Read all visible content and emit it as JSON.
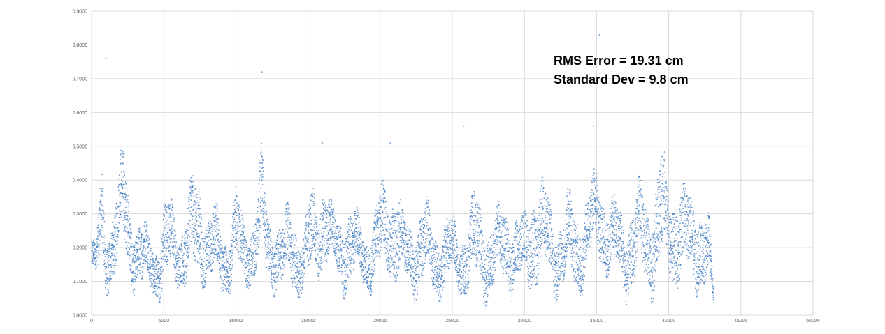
{
  "chart_data": {
    "type": "scatter",
    "title": "",
    "xlabel": "",
    "ylabel": "",
    "xlim": [
      0,
      50000
    ],
    "ylim": [
      0,
      0.9
    ],
    "x_ticks": [
      0,
      5000,
      10000,
      15000,
      20000,
      25000,
      30000,
      35000,
      40000,
      45000,
      50000
    ],
    "y_ticks": [
      0,
      0.1,
      0.2,
      0.3,
      0.4,
      0.5,
      0.6,
      0.7,
      0.8,
      0.9
    ],
    "x_tick_labels": [
      "0",
      "5000",
      "10000",
      "15000",
      "20000",
      "25000",
      "30000",
      "35000",
      "40000",
      "45000",
      "50000"
    ],
    "y_tick_labels": [
      "0.0000",
      "0.1000",
      "0.2000",
      "0.3000",
      "0.4000",
      "0.5000",
      "0.6000",
      "0.7000",
      "0.8000",
      "0.9000"
    ],
    "grid": true,
    "marker_color": "#3b78c0",
    "annotations": [
      "RMS Error = 19.31 cm",
      "Standard Dev = 9.8 cm"
    ],
    "envelope": {
      "x": [
        0,
        300,
        700,
        1000,
        1400,
        1800,
        2200,
        2700,
        3000,
        3500,
        4000,
        4500,
        4800,
        5000,
        5500,
        6000,
        6500,
        7000,
        7500,
        8000,
        8500,
        9000,
        9500,
        10000,
        10500,
        11000,
        11500,
        11800,
        12200,
        12700,
        13200,
        13700,
        14200,
        14700,
        15200,
        15700,
        16100,
        16600,
        17100,
        17600,
        18100,
        18600,
        19100,
        19600,
        20100,
        20600,
        21100,
        21600,
        22100,
        22600,
        23100,
        23600,
        24100,
        24600,
        25100,
        25600,
        26100,
        26600,
        27100,
        27600,
        28100,
        28600,
        29100,
        29600,
        30100,
        30600,
        31100,
        31600,
        32100,
        32600,
        33100,
        33600,
        34100,
        34600,
        35100,
        35600,
        36100,
        36600,
        37100,
        37600,
        38100,
        38600,
        39100,
        39500,
        40000,
        40500,
        41000,
        41500,
        42000,
        42500,
        42800,
        43100
      ],
      "low": [
        0.1,
        0.08,
        0.06,
        0.05,
        0.06,
        0.1,
        0.12,
        0.08,
        0.05,
        0.03,
        0.05,
        0.03,
        0.02,
        0.02,
        0.05,
        0.08,
        0.04,
        0.03,
        0.06,
        0.08,
        0.04,
        0.03,
        0.05,
        0.08,
        0.05,
        0.07,
        0.09,
        0.1,
        0.06,
        0.05,
        0.04,
        0.03,
        0.04,
        0.03,
        0.04,
        0.08,
        0.12,
        0.1,
        0.06,
        0.04,
        0.05,
        0.07,
        0.05,
        0.06,
        0.08,
        0.1,
        0.06,
        0.05,
        0.04,
        0.03,
        0.04,
        0.03,
        0.03,
        0.05,
        0.06,
        0.04,
        0.03,
        0.03,
        0.02,
        0.03,
        0.04,
        0.05,
        0.04,
        0.05,
        0.06,
        0.05,
        0.07,
        0.04,
        0.03,
        0.05,
        0.04,
        0.03,
        0.06,
        0.1,
        0.14,
        0.1,
        0.06,
        0.05,
        0.03,
        0.03,
        0.05,
        0.04,
        0.03,
        0.05,
        0.06,
        0.05,
        0.04,
        0.06,
        0.05,
        0.04,
        0.03,
        0.01
      ],
      "high": [
        0.25,
        0.22,
        0.48,
        0.3,
        0.35,
        0.42,
        0.54,
        0.38,
        0.32,
        0.3,
        0.28,
        0.25,
        0.27,
        0.35,
        0.38,
        0.3,
        0.33,
        0.45,
        0.47,
        0.32,
        0.35,
        0.3,
        0.28,
        0.42,
        0.3,
        0.3,
        0.4,
        0.52,
        0.32,
        0.33,
        0.3,
        0.35,
        0.32,
        0.28,
        0.4,
        0.38,
        0.47,
        0.35,
        0.3,
        0.38,
        0.35,
        0.3,
        0.28,
        0.33,
        0.42,
        0.4,
        0.45,
        0.32,
        0.3,
        0.35,
        0.38,
        0.3,
        0.28,
        0.32,
        0.3,
        0.28,
        0.33,
        0.4,
        0.35,
        0.3,
        0.33,
        0.38,
        0.35,
        0.3,
        0.33,
        0.45,
        0.43,
        0.4,
        0.35,
        0.32,
        0.4,
        0.35,
        0.38,
        0.42,
        0.47,
        0.4,
        0.38,
        0.35,
        0.33,
        0.4,
        0.42,
        0.38,
        0.45,
        0.54,
        0.4,
        0.46,
        0.42,
        0.38,
        0.4,
        0.35,
        0.3,
        0.1
      ]
    },
    "outliers": {
      "x": [
        1000,
        11800,
        16000,
        20700,
        25800,
        34800,
        35200
      ],
      "y": [
        0.76,
        0.72,
        0.51,
        0.51,
        0.56,
        0.56,
        0.83
      ]
    }
  }
}
